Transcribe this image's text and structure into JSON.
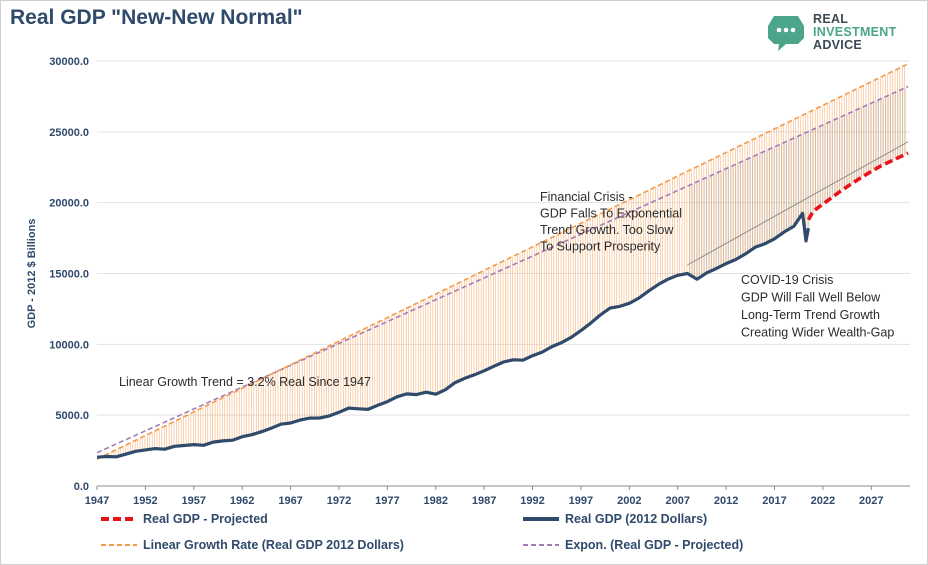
{
  "header": {
    "title": "Real GDP \"New-New Normal\""
  },
  "logo": {
    "line1": "REAL",
    "line2": "INVESTMENT",
    "line3": "ADVICE",
    "icon": "chat-bubble-dots-icon"
  },
  "chart_data": {
    "type": "line",
    "title": "Real GDP \"New-New Normal\"",
    "ylabel": "GDP - 2012 $ Billions",
    "xlabel": "",
    "xlim": [
      1947,
      2031
    ],
    "ylim": [
      0,
      30000
    ],
    "yticks": [
      0,
      5000,
      10000,
      15000,
      20000,
      25000,
      30000
    ],
    "ytick_labels": [
      "0.0",
      "5000.0",
      "10000.0",
      "15000.0",
      "20000.0",
      "25000.0",
      "30000.0"
    ],
    "xticks": [
      1947,
      1952,
      1957,
      1962,
      1967,
      1972,
      1977,
      1982,
      1987,
      1992,
      1997,
      2002,
      2007,
      2012,
      2017,
      2022,
      2027
    ],
    "grid": "horizontal",
    "legend_position": "bottom",
    "colors": {
      "real_gdp": "#2f4a6a",
      "projected": "#e8141c",
      "linear": "#f39a4a",
      "expon": "#a57bb5",
      "trend_gray": "#8c8c8c"
    },
    "series": [
      {
        "name": "Real GDP - Projected",
        "style": "red-dashed",
        "x": [
          2020.5,
          2021,
          2022,
          2024,
          2026,
          2028,
          2030.8
        ],
        "y": [
          18800,
          19400,
          19900,
          20900,
          21800,
          22600,
          23500
        ]
      },
      {
        "name": "Real GDP (2012 Dollars)",
        "style": "navy-solid",
        "x": [
          1947,
          1948,
          1949,
          1950,
          1951,
          1952,
          1953,
          1954,
          1955,
          1956,
          1957,
          1958,
          1959,
          1960,
          1961,
          1962,
          1963,
          1964,
          1965,
          1966,
          1967,
          1968,
          1969,
          1970,
          1971,
          1972,
          1973,
          1974,
          1975,
          1976,
          1977,
          1978,
          1979,
          1980,
          1981,
          1982,
          1983,
          1984,
          1985,
          1986,
          1987,
          1988,
          1989,
          1990,
          1991,
          1992,
          1993,
          1994,
          1995,
          1996,
          1997,
          1998,
          1999,
          2000,
          2001,
          2002,
          2003,
          2004,
          2005,
          2006,
          2007,
          2008,
          2009,
          2010,
          2011,
          2012,
          2013,
          2014,
          2015,
          2016,
          2017,
          2018,
          2019,
          2019.9,
          2020.25,
          2020.5
        ],
        "y": [
          2030,
          2080,
          2060,
          2250,
          2450,
          2550,
          2640,
          2600,
          2800,
          2860,
          2920,
          2870,
          3100,
          3180,
          3230,
          3480,
          3620,
          3830,
          4080,
          4360,
          4450,
          4660,
          4790,
          4800,
          4950,
          5200,
          5500,
          5450,
          5410,
          5700,
          5960,
          6300,
          6500,
          6450,
          6620,
          6480,
          6800,
          7300,
          7600,
          7850,
          8130,
          8450,
          8750,
          8910,
          8880,
          9200,
          9450,
          9840,
          10120,
          10500,
          10970,
          11490,
          12070,
          12560,
          12680,
          12900,
          13270,
          13770,
          14230,
          14600,
          14870,
          15000,
          14600,
          15050,
          15350,
          15700,
          15990,
          16380,
          16850,
          17100,
          17450,
          17940,
          18340,
          19250,
          17300,
          18200
        ]
      },
      {
        "name": "Linear Growth Rate (Real GDP 2012 Dollars)",
        "style": "orange-dashed",
        "x": [
          1947,
          2030.8
        ],
        "y": [
          1900,
          29800
        ]
      },
      {
        "name": "Expon. (Real GDP - Projected)",
        "style": "purple-dashed",
        "x": [
          1947,
          2030.8
        ],
        "y": [
          2350,
          28200
        ]
      }
    ],
    "annotations": [
      {
        "lines": [
          "Linear Growth Trend = 3.2% Real Since 1947"
        ]
      },
      {
        "lines": [
          "Financial Crisis -",
          "GDP Falls To Exponential",
          "Trend Growth. Too Slow",
          "To Support Prosperity"
        ]
      },
      {
        "lines": [
          "COVID-19 Crisis",
          "GDP Will Fall Well Below",
          "Long-Term Trend Growth",
          "Creating Wider Wealth-Gap"
        ]
      }
    ]
  }
}
